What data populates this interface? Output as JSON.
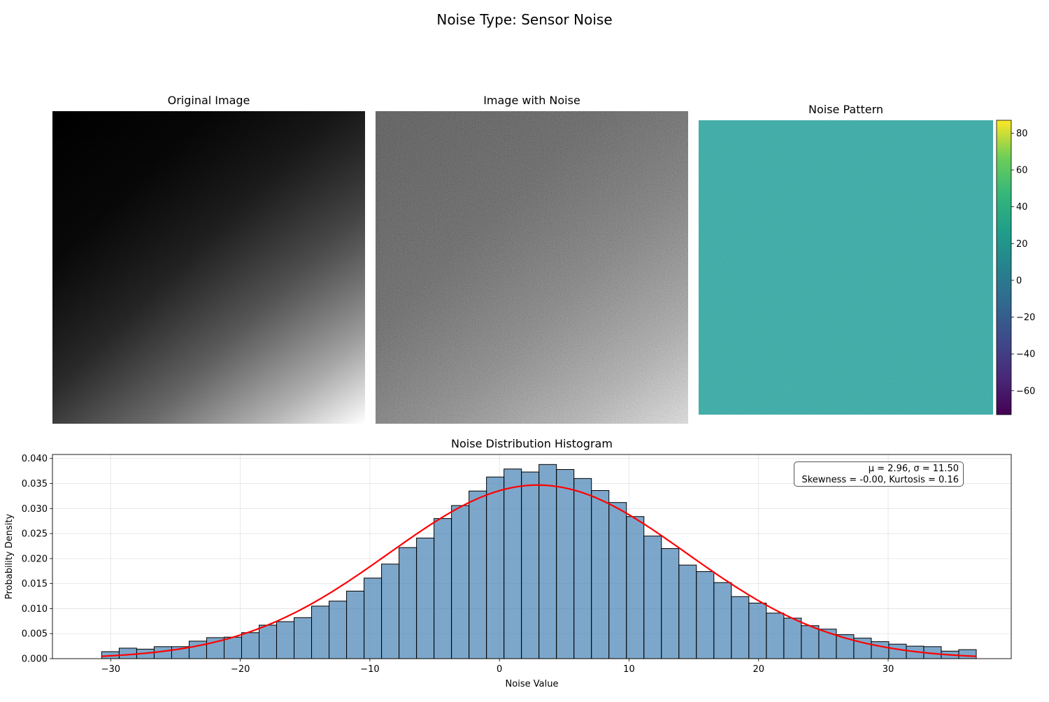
{
  "suptitle": "Noise Type: Sensor Noise",
  "panels": {
    "original": {
      "title": "Original Image"
    },
    "noisy": {
      "title": "Image with Noise"
    },
    "pattern": {
      "title": "Noise Pattern"
    }
  },
  "colorbar": {
    "colormap": "viridis",
    "range": [
      -73,
      87
    ],
    "ticks": [
      "80",
      "60",
      "40",
      "20",
      "0",
      "−20",
      "−40",
      "−60"
    ],
    "tick_values": [
      80,
      60,
      40,
      20,
      0,
      -20,
      -40,
      -60
    ]
  },
  "stats": {
    "line1": "μ = 2.96, σ = 11.50",
    "line2": "Skewness = -0.00, Kurtosis = 0.16"
  },
  "colors": {
    "bar_fill": "#4682b4",
    "bar_edge": "#000000",
    "fit_line": "#ff0000",
    "grid": "#b0b0b0"
  },
  "chart_data": {
    "type": "bar",
    "title": "Noise Distribution Histogram",
    "xlabel": "Noise Value",
    "ylabel": "Probability Density",
    "xlim": [
      -34.5,
      39.5
    ],
    "ylim": [
      0,
      0.0408
    ],
    "xticks": [
      -30,
      -20,
      -10,
      0,
      10,
      20,
      30
    ],
    "xtick_labels": [
      "−30",
      "−20",
      "−10",
      "0",
      "10",
      "20",
      "30"
    ],
    "yticks": [
      0,
      0.005,
      0.01,
      0.015,
      0.02,
      0.025,
      0.03,
      0.035,
      0.04
    ],
    "ytick_labels": [
      "0.000",
      "0.005",
      "0.010",
      "0.015",
      "0.020",
      "0.025",
      "0.030",
      "0.035",
      "0.040"
    ],
    "grid": true,
    "bins_start": -30.7,
    "bin_width": 1.35,
    "values": [
      0.0014,
      0.0021,
      0.0019,
      0.0024,
      0.0024,
      0.0035,
      0.0042,
      0.0043,
      0.0052,
      0.0067,
      0.0074,
      0.0082,
      0.0105,
      0.0115,
      0.0135,
      0.0161,
      0.0189,
      0.0222,
      0.0241,
      0.028,
      0.0306,
      0.0335,
      0.0363,
      0.0379,
      0.0373,
      0.0388,
      0.0378,
      0.036,
      0.0336,
      0.0312,
      0.0284,
      0.0245,
      0.022,
      0.0187,
      0.0174,
      0.0152,
      0.0124,
      0.0111,
      0.0091,
      0.0081,
      0.0066,
      0.0059,
      0.0048,
      0.0041,
      0.0034,
      0.0029,
      0.0025,
      0.0024,
      0.0015,
      0.0018
    ],
    "fit": {
      "type": "normal",
      "mu": 2.96,
      "sigma": 11.5
    }
  }
}
